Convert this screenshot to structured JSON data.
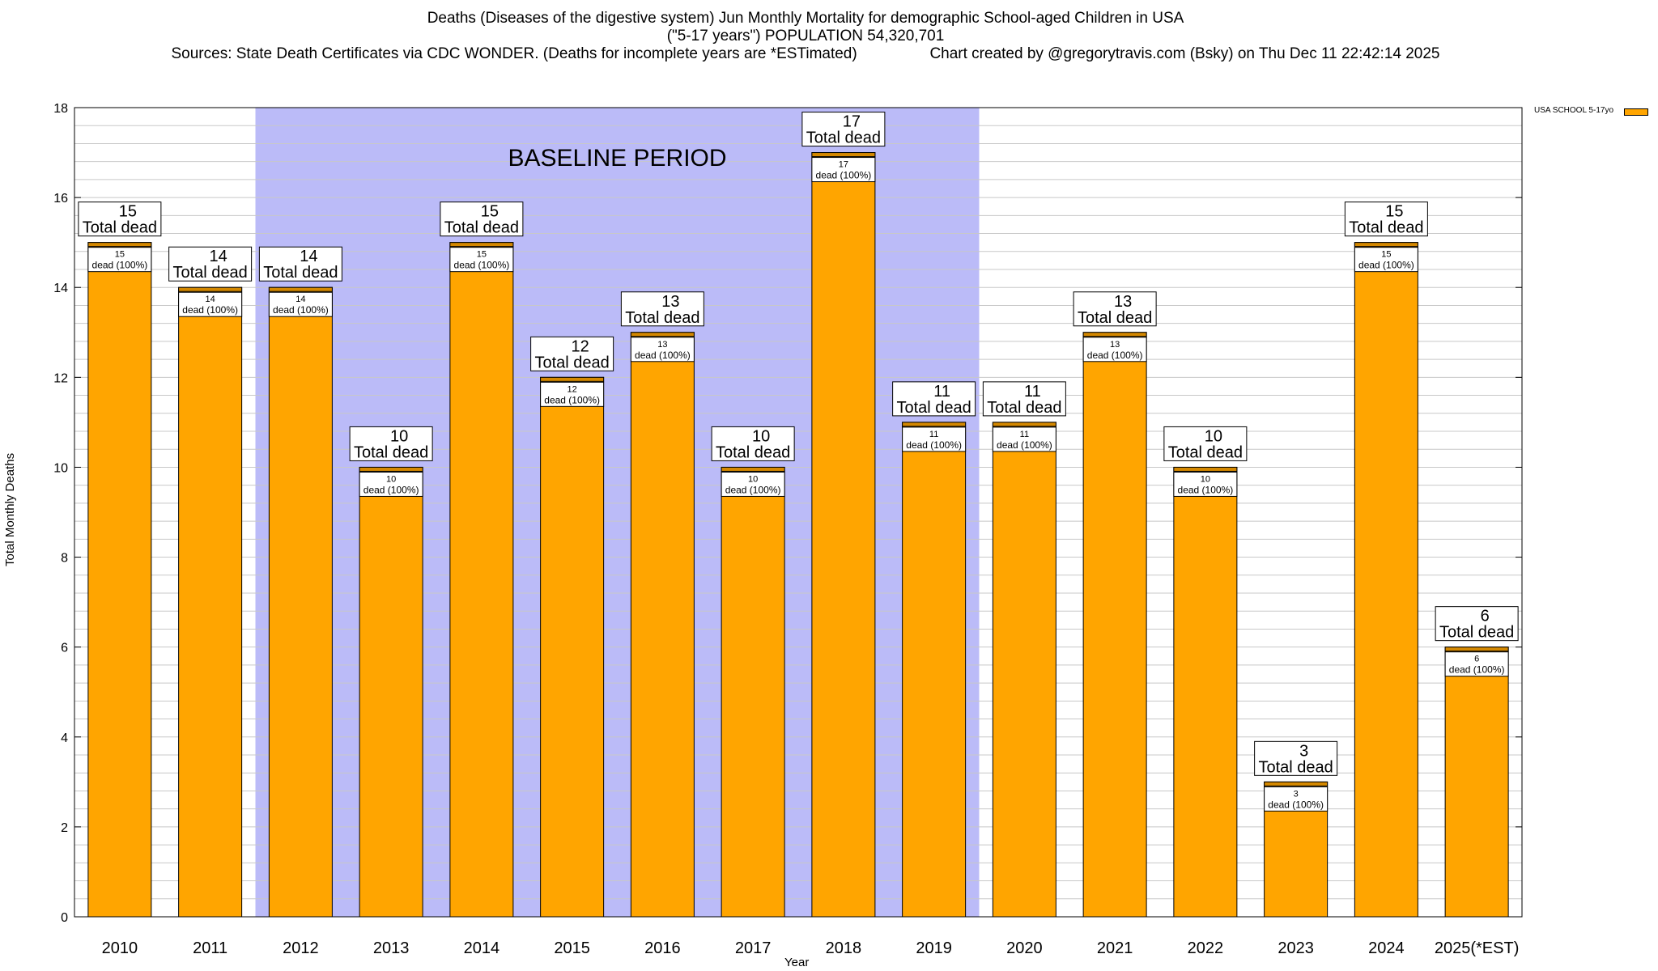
{
  "chart_data": {
    "type": "bar",
    "title_lines": [
      "Deaths (Diseases of the digestive system) Jun Monthly Mortality for demographic School-aged Children in USA",
      "(\"5-17 years\") POPULATION 54,320,701",
      "Sources: State Death Certificates via CDC WONDER. (Deaths for incomplete years are *ESTimated)                 Chart created by @gregorytravis.com (Bsky) on Thu Dec 11 22:42:14 2025"
    ],
    "categories": [
      "2010",
      "2011",
      "2012",
      "2013",
      "2014",
      "2015",
      "2016",
      "2017",
      "2018",
      "2019",
      "2020",
      "2021",
      "2022",
      "2023",
      "2024",
      "2025(*EST)"
    ],
    "values": [
      15,
      14,
      14,
      10,
      15,
      12,
      13,
      10,
      17,
      11,
      11,
      13,
      10,
      3,
      15,
      6
    ],
    "total_label": "Total dead",
    "inner_label": "dead (100%)",
    "xlabel": "Year",
    "ylabel": "Total Monthly Deaths",
    "ylim": [
      0,
      18
    ],
    "yticks": [
      0,
      2,
      4,
      6,
      8,
      10,
      12,
      14,
      16,
      18
    ],
    "minor_step": 0.4,
    "baseline": {
      "label": "BASELINE PERIOD",
      "start_index": 2,
      "end_index": 9
    },
    "legend": {
      "label": "USA SCHOOL 5-17yo",
      "position": "top-right"
    },
    "colors": {
      "bar": "#FFA500",
      "baseline": "#BBBBF8",
      "grid": "#C8C8C8",
      "bar_top": "#D48800"
    }
  }
}
